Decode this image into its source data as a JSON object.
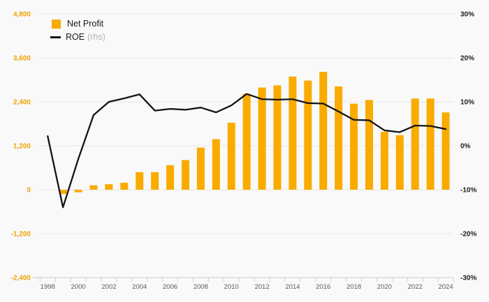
{
  "chart_data": {
    "type": "bar",
    "subtype": "bar+line-dual-axis",
    "title": "",
    "categories": [
      1998,
      1999,
      2000,
      2001,
      2002,
      2003,
      2004,
      2005,
      2006,
      2007,
      2008,
      2009,
      2010,
      2011,
      2012,
      2013,
      2014,
      2015,
      2016,
      2017,
      2018,
      2019,
      2020,
      2021,
      2022,
      2023,
      2024
    ],
    "series": [
      {
        "name": "Net Profit",
        "type": "bar",
        "axis": "left",
        "color": "#F9AB00",
        "values": [
          null,
          -115,
          -70,
          120,
          150,
          190,
          480,
          480,
          670,
          810,
          1150,
          1380,
          1830,
          2620,
          2790,
          2850,
          3090,
          2980,
          3220,
          2820,
          2350,
          2450,
          1580,
          1490,
          2490,
          2490,
          2110
        ]
      },
      {
        "name": "ROE",
        "name_suffix": "(rhs)",
        "type": "line",
        "axis": "right",
        "color": "#141414",
        "values": [
          2.2,
          -14,
          -3,
          7,
          10,
          10.8,
          11.7,
          8,
          8.4,
          8.2,
          8.7,
          7.6,
          9.2,
          11.8,
          10.6,
          10.5,
          10.6,
          9.7,
          9.6,
          7.8,
          5.9,
          5.8,
          3.5,
          3.1,
          4.6,
          4.5,
          3.8
        ]
      }
    ],
    "left_axis": {
      "min": -2400,
      "max": 4800,
      "step": 1200,
      "tick_labels": [
        "4,800",
        "3,600",
        "2,400",
        "1,200",
        "0",
        "-1,200",
        "-2,400"
      ],
      "label_color": "#F0A202"
    },
    "right_axis": {
      "min": -30,
      "max": 30,
      "step": 10,
      "tick_labels": [
        "30%",
        "20%",
        "10%",
        "0%",
        "-10%",
        "-20%",
        "-30%"
      ],
      "label_color": "#1c1c1c"
    },
    "x_axis": {
      "tick_labels": [
        "1998",
        "2000",
        "2002",
        "2004",
        "2006",
        "2008",
        "2010",
        "2012",
        "2014",
        "2016",
        "2018",
        "2020",
        "2022",
        "2024"
      ],
      "label_color": "#5a5a5a",
      "line_color": "#c3cfe0"
    },
    "grid": {
      "show": true,
      "color": "#e8e8e8"
    },
    "legend": {
      "position": "top-left",
      "items": [
        {
          "label": "Net Profit",
          "suffix": "",
          "swatch": "square",
          "color": "#F9AB00"
        },
        {
          "label": "ROE",
          "suffix": "(rhs)",
          "swatch": "line",
          "color": "#111111"
        }
      ]
    }
  }
}
